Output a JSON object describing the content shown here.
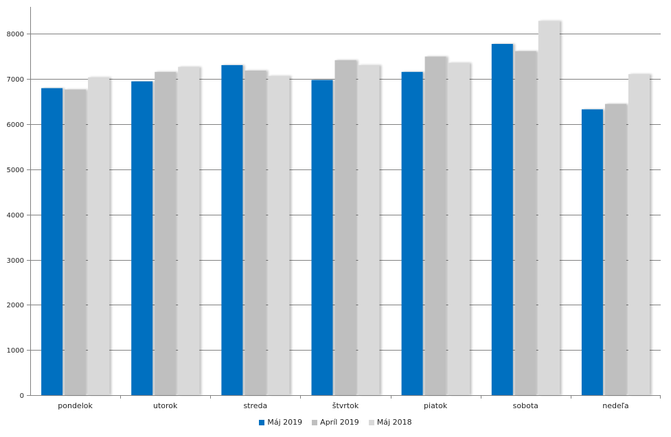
{
  "chart_data": {
    "type": "bar",
    "categories": [
      "pondelok",
      "utorok",
      "streda",
      "štvrtok",
      "piatok",
      "sobota",
      "nedeľa"
    ],
    "series": [
      {
        "name": "Máj 2019",
        "color": "#0070c0",
        "values": [
          6800,
          6950,
          7310,
          6980,
          7160,
          7780,
          6330
        ]
      },
      {
        "name": "Apríl 2019",
        "color": "#bfbfbf",
        "values": [
          6770,
          7160,
          7190,
          7420,
          7500,
          7620,
          6450
        ]
      },
      {
        "name": "Máj 2018",
        "color": "#d9d9d9",
        "values": [
          7040,
          7270,
          7070,
          7310,
          7360,
          8290,
          7110
        ]
      }
    ],
    "yticks": [
      0,
      1000,
      2000,
      3000,
      4000,
      5000,
      6000,
      7000,
      8000
    ],
    "ylim": [
      0,
      8600
    ],
    "grid": true,
    "legend_position": "bottom"
  }
}
